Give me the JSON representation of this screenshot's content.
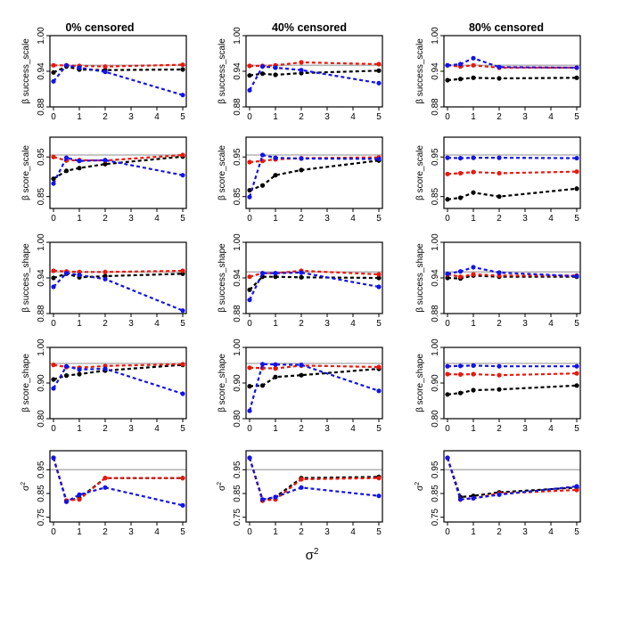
{
  "chart_data": {
    "type": "line",
    "layout": "5 rows x 3 columns of small-multiple line plots",
    "column_titles": [
      "0% censored",
      "40% censored",
      "80% censored"
    ],
    "xlabel": "σ",
    "xlabel_superscript": "2",
    "x": [
      0,
      0.5,
      1,
      2,
      5
    ],
    "x_ticks": [
      0,
      1,
      2,
      3,
      4,
      5
    ],
    "xlim": [
      0,
      5
    ],
    "series_colors": {
      "black": "#000000",
      "red": "#e8190e",
      "blue": "#1414e6"
    },
    "reference_line_color": "#b4b4b4",
    "rows": [
      {
        "ylabel_greek": "β",
        "ylabel_text": "success_scale",
        "ylim": [
          0.88,
          1.0
        ],
        "y_ticks": [
          "0.88",
          "0.94",
          "1.00"
        ],
        "reference": 0.95,
        "panels": [
          {
            "series": [
              {
                "name": "black",
                "values": [
                  0.938,
                  0.948,
                  0.943,
                  0.942,
                  0.943
                ]
              },
              {
                "name": "red",
                "values": [
                  0.95,
                  0.95,
                  0.949,
                  0.948,
                  0.951
                ]
              },
              {
                "name": "blue",
                "values": [
                  0.923,
                  0.95,
                  0.946,
                  0.939,
                  0.9
                ]
              }
            ]
          },
          {
            "series": [
              {
                "name": "black",
                "values": [
                  0.933,
                  0.936,
                  0.934,
                  0.937,
                  0.941
                ]
              },
              {
                "name": "red",
                "values": [
                  0.949,
                  0.949,
                  0.95,
                  0.955,
                  0.952
                ]
              },
              {
                "name": "blue",
                "values": [
                  0.908,
                  0.948,
                  0.946,
                  0.942,
                  0.92
                ]
              }
            ]
          },
          {
            "series": [
              {
                "name": "black",
                "values": [
                  0.925,
                  0.927,
                  0.929,
                  0.928,
                  0.929
                ]
              },
              {
                "name": "red",
                "values": [
                  0.95,
                  0.948,
                  0.95,
                  0.946,
                  0.946
                ]
              },
              {
                "name": "blue",
                "values": [
                  0.95,
                  0.952,
                  0.962,
                  0.947,
                  0.946
                ]
              }
            ]
          }
        ]
      },
      {
        "ylabel_greek": "β",
        "ylabel_text": "score_scale",
        "ylim": [
          0.82,
          1.0
        ],
        "y_ticks": [
          "0.85",
          "0.95"
        ],
        "reference": 0.955,
        "panels": [
          {
            "series": [
              {
                "name": "black",
                "values": [
                  0.895,
                  0.915,
                  0.922,
                  0.932,
                  0.951
                ]
              },
              {
                "name": "red",
                "values": [
                  0.95,
                  0.941,
                  0.942,
                  0.941,
                  0.955
                ]
              },
              {
                "name": "blue",
                "values": [
                  0.883,
                  0.948,
                  0.94,
                  0.942,
                  0.904
                ]
              }
            ]
          },
          {
            "series": [
              {
                "name": "black",
                "values": [
                  0.866,
                  0.878,
                  0.904,
                  0.917,
                  0.941
                ]
              },
              {
                "name": "red",
                "values": [
                  0.937,
                  0.94,
                  0.944,
                  0.947,
                  0.949
                ]
              },
              {
                "name": "blue",
                "values": [
                  0.849,
                  0.955,
                  0.948,
                  0.946,
                  0.945
                ]
              }
            ]
          },
          {
            "series": [
              {
                "name": "black",
                "values": [
                  0.843,
                  0.847,
                  0.86,
                  0.85,
                  0.87
                ]
              },
              {
                "name": "red",
                "values": [
                  0.907,
                  0.909,
                  0.912,
                  0.909,
                  0.913
                ]
              },
              {
                "name": "blue",
                "values": [
                  0.948,
                  0.947,
                  0.948,
                  0.948,
                  0.947
                ]
              }
            ]
          }
        ]
      },
      {
        "ylabel_greek": "β",
        "ylabel_text": "success_shape",
        "ylim": [
          0.88,
          1.0
        ],
        "y_ticks": [
          "0.88",
          "0.94",
          "1.00"
        ],
        "reference": 0.95,
        "panels": [
          {
            "series": [
              {
                "name": "black",
                "values": [
                  0.94,
                  0.947,
                  0.941,
                  0.943,
                  0.947
                ]
              },
              {
                "name": "red",
                "values": [
                  0.952,
                  0.951,
                  0.95,
                  0.95,
                  0.952
                ]
              },
              {
                "name": "blue",
                "values": [
                  0.925,
                  0.948,
                  0.945,
                  0.938,
                  0.885
                ]
              }
            ]
          },
          {
            "series": [
              {
                "name": "black",
                "values": [
                  0.92,
                  0.942,
                  0.942,
                  0.941,
                  0.94
                ]
              },
              {
                "name": "red",
                "values": [
                  0.942,
                  0.948,
                  0.948,
                  0.952,
                  0.946
                ]
              },
              {
                "name": "blue",
                "values": [
                  0.903,
                  0.948,
                  0.948,
                  0.949,
                  0.925
                ]
              }
            ]
          },
          {
            "series": [
              {
                "name": "black",
                "values": [
                  0.94,
                  0.939,
                  0.944,
                  0.942,
                  0.942
                ]
              },
              {
                "name": "red",
                "values": [
                  0.946,
                  0.942,
                  0.946,
                  0.944,
                  0.944
                ]
              },
              {
                "name": "blue",
                "values": [
                  0.947,
                  0.951,
                  0.958,
                  0.949,
                  0.943
                ]
              }
            ]
          }
        ]
      },
      {
        "ylabel_greek": "β",
        "ylabel_text": "score_shape",
        "ylim": [
          0.8,
          1.0
        ],
        "y_ticks": [
          "0.80",
          "0.90",
          "1.00"
        ],
        "reference": 0.955,
        "panels": [
          {
            "series": [
              {
                "name": "black",
                "values": [
                  0.91,
                  0.921,
                  0.925,
                  0.935,
                  0.951
                ]
              },
              {
                "name": "red",
                "values": [
                  0.951,
                  0.945,
                  0.943,
                  0.948,
                  0.953
                ]
              },
              {
                "name": "blue",
                "values": [
                  0.885,
                  0.947,
                  0.938,
                  0.94,
                  0.87
                ]
              }
            ]
          },
          {
            "series": [
              {
                "name": "black",
                "values": [
                  0.891,
                  0.893,
                  0.917,
                  0.922,
                  0.94
                ]
              },
              {
                "name": "red",
                "values": [
                  0.943,
                  0.942,
                  0.941,
                  0.949,
                  0.945
                ]
              },
              {
                "name": "blue",
                "values": [
                  0.822,
                  0.953,
                  0.952,
                  0.951,
                  0.878
                ]
              }
            ]
          },
          {
            "series": [
              {
                "name": "black",
                "values": [
                  0.868,
                  0.872,
                  0.88,
                  0.882,
                  0.893
                ]
              },
              {
                "name": "red",
                "values": [
                  0.925,
                  0.924,
                  0.925,
                  0.922,
                  0.927
                ]
              },
              {
                "name": "blue",
                "values": [
                  0.947,
                  0.948,
                  0.949,
                  0.947,
                  0.947
                ]
              }
            ]
          }
        ]
      },
      {
        "ylabel_greek": "σ",
        "ylabel_text": "",
        "ylabel_superscript": "2",
        "ylim": [
          0.73,
          1.03
        ],
        "y_ticks": [
          "0.75",
          "0.85",
          "0.95"
        ],
        "reference": 0.95,
        "panels": [
          {
            "series": [
              {
                "name": "black",
                "values": [
                  1.0,
                  0.82,
                  0.83,
                  0.915,
                  0.915
                ]
              },
              {
                "name": "red",
                "values": [
                  1.0,
                  0.82,
                  0.825,
                  0.915,
                  0.915
                ]
              },
              {
                "name": "blue",
                "values": [
                  1.0,
                  0.815,
                  0.845,
                  0.875,
                  0.8
                ]
              }
            ]
          },
          {
            "series": [
              {
                "name": "black",
                "values": [
                  1.0,
                  0.82,
                  0.835,
                  0.915,
                  0.92
                ]
              },
              {
                "name": "red",
                "values": [
                  1.0,
                  0.82,
                  0.825,
                  0.91,
                  0.915
                ]
              },
              {
                "name": "blue",
                "values": [
                  1.0,
                  0.825,
                  0.835,
                  0.875,
                  0.84
                ]
              }
            ]
          },
          {
            "series": [
              {
                "name": "black",
                "values": [
                  1.0,
                  0.835,
                  0.84,
                  0.855,
                  0.875
                ]
              },
              {
                "name": "red",
                "values": [
                  1.0,
                  0.825,
                  0.83,
                  0.85,
                  0.865
                ]
              },
              {
                "name": "blue",
                "values": [
                  1.0,
                  0.825,
                  0.83,
                  0.845,
                  0.88
                ]
              }
            ]
          }
        ]
      }
    ]
  }
}
